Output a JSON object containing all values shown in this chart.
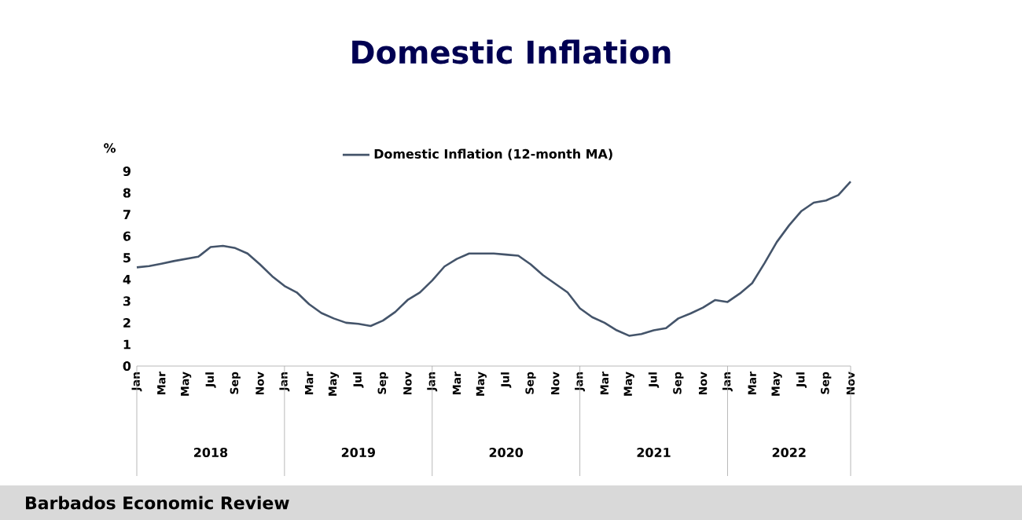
{
  "chart_data": {
    "type": "line",
    "title": "Domestic Inflation",
    "ylabel": "%",
    "categories": [
      "Jan",
      null,
      "Mar",
      null,
      "May",
      null,
      "Jul",
      null,
      "Sep",
      null,
      "Nov",
      null,
      "Jan",
      null,
      "Mar",
      null,
      "May",
      null,
      "Jul",
      null,
      "Sep",
      null,
      "Nov",
      null,
      "Jan",
      null,
      "Mar",
      null,
      "May",
      null,
      "Jul",
      null,
      "Sep",
      null,
      "Nov",
      null,
      "Jan",
      null,
      "Mar",
      null,
      "May",
      null,
      "Jul",
      null,
      "Sep",
      null,
      "Nov",
      null,
      "Jan",
      null,
      "Mar",
      null,
      "May",
      null,
      "Jul",
      null,
      "Sep",
      null,
      "Nov"
    ],
    "series": [
      {
        "name": "Domestic Inflation (12-month MA)",
        "color": "#44546a",
        "values": [
          4.56,
          4.62,
          4.73,
          4.85,
          4.95,
          5.05,
          5.5,
          5.55,
          5.45,
          5.2,
          4.7,
          4.15,
          3.7,
          3.4,
          2.86,
          2.45,
          2.2,
          2.0,
          1.95,
          1.85,
          2.1,
          2.5,
          3.05,
          3.4,
          3.95,
          4.6,
          4.95,
          5.2,
          5.2,
          5.2,
          5.15,
          5.1,
          4.7,
          4.2,
          3.8,
          3.4,
          2.67,
          2.26,
          2.0,
          1.65,
          1.4,
          1.48,
          1.65,
          1.75,
          2.2,
          2.43,
          2.7,
          3.05,
          2.96,
          3.35,
          3.83,
          4.75,
          5.73,
          6.5,
          7.16,
          7.55,
          7.65,
          7.9,
          8.52
        ]
      }
    ],
    "ylim": [
      0,
      9
    ],
    "yticks": [
      0,
      1,
      2,
      3,
      4,
      5,
      6,
      7,
      8,
      9
    ],
    "grid": false,
    "legend": "top",
    "line_style": "solid",
    "marker": "none",
    "annotations": [
      "2018",
      "2019",
      "2020",
      "2021",
      "2022",
      "Barbados Economic Review"
    ]
  }
}
